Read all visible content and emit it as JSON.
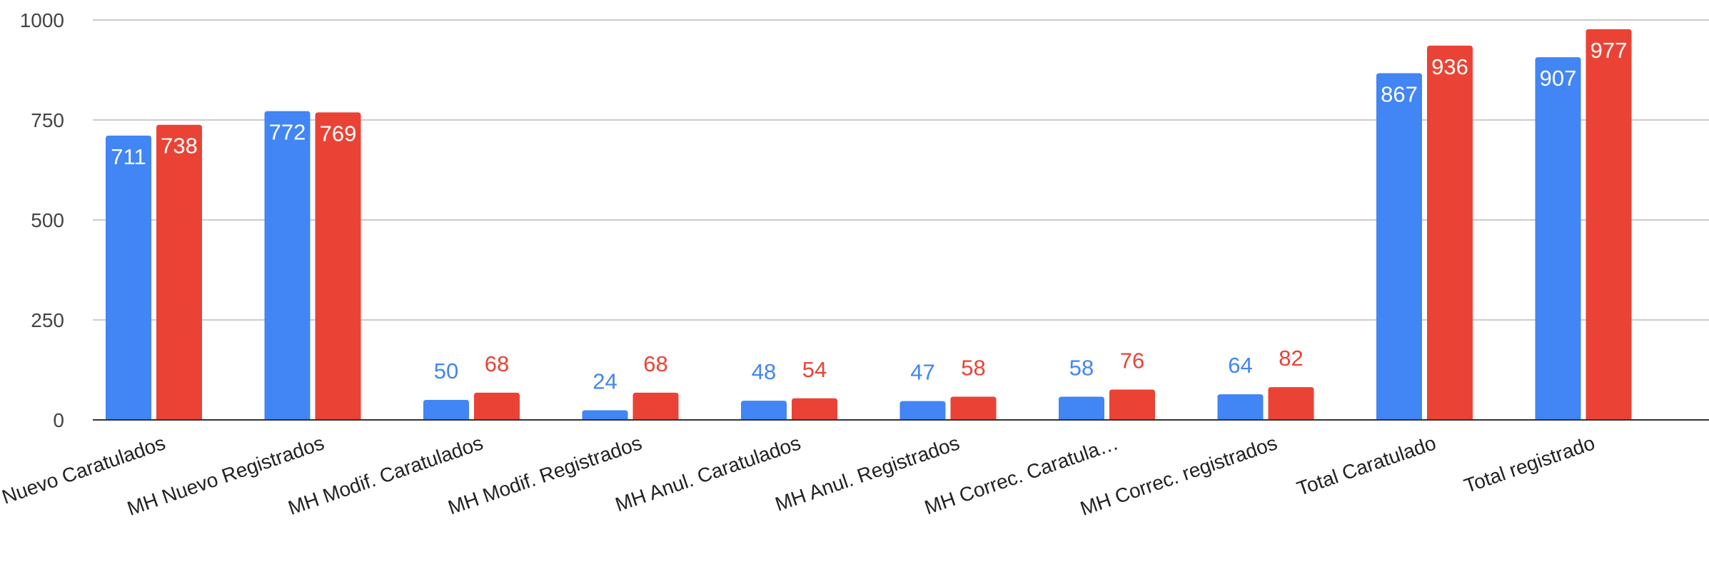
{
  "chart_data": {
    "type": "bar",
    "categories": [
      "MH Nuevo Caratulados",
      "MH Nuevo Registrados",
      "MH Modif. Caratulados",
      "MH Modif. Registrados",
      "MH Anul. Caratulados",
      "MH Anul. Registrados",
      "MH Correc. Caratula…",
      "MH Correc. registrados",
      "Total Caratulado",
      "Total registrado"
    ],
    "series": [
      {
        "color": "#4285F4",
        "values": [
          711,
          772,
          50,
          24,
          48,
          47,
          58,
          64,
          867,
          907
        ]
      },
      {
        "color": "#EA4335",
        "values": [
          738,
          769,
          68,
          68,
          54,
          58,
          76,
          82,
          936,
          977
        ]
      }
    ],
    "ylim": [
      0,
      1000
    ],
    "yticks": [
      "0",
      "250",
      "500",
      "750",
      "1000"
    ],
    "grid": true,
    "legend": "none",
    "title": "",
    "xlabel": "",
    "ylabel": ""
  }
}
